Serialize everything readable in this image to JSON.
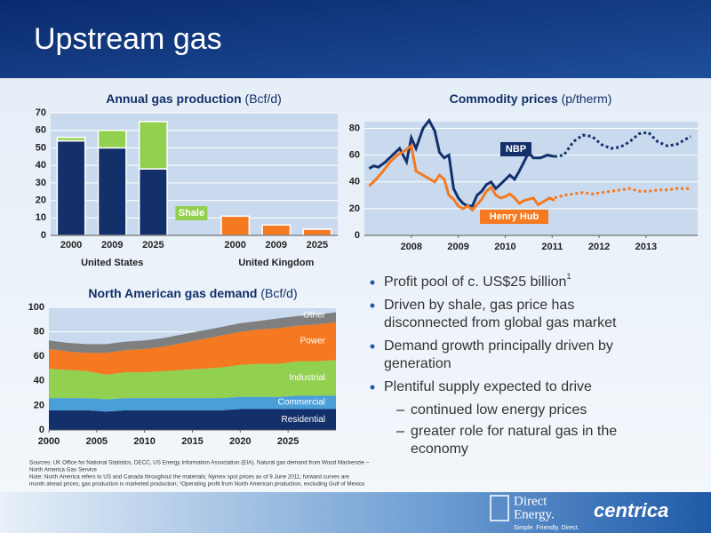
{
  "header": {
    "title": "Upstream gas"
  },
  "chart_data": [
    {
      "type": "bar",
      "title": "Annual gas production",
      "unit": "(Bcf/d)",
      "categories": [
        "2000",
        "2009",
        "2025",
        null,
        "2000",
        "2009",
        "2025"
      ],
      "group_labels": [
        "United States",
        "United Kingdom"
      ],
      "series": [
        {
          "color": "#13306b",
          "values": [
            54,
            50,
            38,
            null,
            null,
            null,
            null
          ]
        },
        {
          "name": "Shale",
          "color": "#92d050",
          "values": [
            2,
            10,
            27,
            null,
            null,
            null,
            null
          ]
        },
        {
          "color": "#f47920",
          "values": [
            null,
            null,
            null,
            null,
            11,
            6,
            3.5
          ]
        }
      ],
      "ylim": [
        0,
        70
      ],
      "yticks": [
        0,
        10,
        20,
        30,
        40,
        50,
        60,
        70
      ],
      "grid": true
    },
    {
      "type": "line",
      "title": "Commodity prices",
      "unit": "(p/therm)",
      "xlim": [
        2007.5,
        2014.6
      ],
      "xticks": [
        {
          "value": 2008.5,
          "label": "2008"
        },
        {
          "value": 2009.5,
          "label": "2009"
        },
        {
          "value": 2010.5,
          "label": "2010"
        },
        {
          "value": 2011.5,
          "label": "2011"
        },
        {
          "value": 2012.5,
          "label": "2012"
        },
        {
          "value": 2013.5,
          "label": "2013"
        }
      ],
      "ylim": [
        0,
        85
      ],
      "yticks": [
        0,
        20,
        40,
        60,
        80
      ],
      "grid": true,
      "series": [
        {
          "name": "NBP",
          "color": "#13306b",
          "dash": false,
          "x": [
            2007.6,
            2007.7,
            2007.8,
            2007.95,
            2008.1,
            2008.25,
            2008.4,
            2008.5,
            2008.6,
            2008.75,
            2008.88,
            2009.0,
            2009.1,
            2009.2,
            2009.3,
            2009.4,
            2009.5,
            2009.6,
            2009.7,
            2009.8,
            2009.9,
            2010.0,
            2010.1,
            2010.2,
            2010.3,
            2010.45,
            2010.6,
            2010.7,
            2010.8,
            2010.9,
            2011.0,
            2011.1,
            2011.25,
            2011.4,
            2011.55
          ],
          "values": [
            50,
            52,
            51,
            55,
            60,
            65,
            55,
            73,
            65,
            80,
            86,
            78,
            62,
            58,
            60,
            35,
            28,
            24,
            22,
            22,
            30,
            33,
            38,
            40,
            35,
            40,
            45,
            42,
            48,
            55,
            62,
            58,
            58,
            60,
            59
          ]
        },
        {
          "color": "#13306b",
          "dash": true,
          "x": [
            2011.55,
            2011.75,
            2011.95,
            2012.15,
            2012.35,
            2012.55,
            2012.75,
            2012.95,
            2013.15,
            2013.35,
            2013.55,
            2013.75,
            2013.95,
            2014.15,
            2014.45
          ],
          "values": [
            59,
            60,
            70,
            75,
            74,
            68,
            65,
            66,
            70,
            76,
            77,
            70,
            67,
            68,
            74
          ]
        },
        {
          "name": "Henry Hub",
          "color": "#f47920",
          "dash": false,
          "x": [
            2007.6,
            2007.75,
            2007.9,
            2008.05,
            2008.2,
            2008.35,
            2008.5,
            2008.6,
            2008.75,
            2008.9,
            2009.0,
            2009.1,
            2009.2,
            2009.3,
            2009.4,
            2009.5,
            2009.6,
            2009.7,
            2009.8,
            2009.9,
            2010.0,
            2010.1,
            2010.2,
            2010.3,
            2010.4,
            2010.5,
            2010.6,
            2010.7,
            2010.8,
            2010.9,
            2011.0,
            2011.1,
            2011.2,
            2011.3,
            2011.45,
            2011.55
          ],
          "values": [
            37,
            42,
            48,
            55,
            60,
            63,
            67,
            48,
            45,
            42,
            40,
            45,
            42,
            30,
            27,
            22,
            20,
            22,
            19,
            23,
            27,
            33,
            36,
            30,
            28,
            29,
            31,
            28,
            24,
            26,
            27,
            28,
            23,
            25,
            28,
            26
          ]
        },
        {
          "color": "#f47920",
          "dash": true,
          "x": [
            2011.55,
            2011.75,
            2011.95,
            2012.15,
            2012.35,
            2012.55,
            2012.75,
            2012.95,
            2013.15,
            2013.35,
            2013.55,
            2013.75,
            2013.95,
            2014.15,
            2014.45
          ],
          "values": [
            28,
            30,
            31,
            32,
            31,
            32,
            33,
            34,
            35,
            33,
            33,
            34,
            34,
            35,
            35
          ]
        }
      ]
    },
    {
      "type": "area",
      "title": "North American gas demand",
      "unit": "(Bcf/d)",
      "x": [
        2000,
        2002,
        2004,
        2006,
        2008,
        2010,
        2012,
        2014,
        2016,
        2018,
        2020,
        2022,
        2024,
        2026,
        2028,
        2030
      ],
      "xlim": [
        2000,
        2030
      ],
      "xticks": [
        2000,
        2005,
        2010,
        2015,
        2020,
        2025
      ],
      "ylim": [
        0,
        100
      ],
      "yticks": [
        0,
        20,
        40,
        60,
        80,
        100
      ],
      "grid": true,
      "series": [
        {
          "name": "Residential",
          "color": "#13306b",
          "values": [
            16,
            16,
            16,
            15,
            16,
            16,
            16,
            16,
            16,
            16,
            17,
            17,
            17,
            17,
            17,
            17
          ]
        },
        {
          "name": "Commercial",
          "color": "#4a9fd8",
          "values": [
            10,
            10,
            10,
            10,
            10,
            10,
            10,
            10,
            10,
            10,
            10,
            10,
            10,
            11,
            11,
            11
          ]
        },
        {
          "name": "Industrial",
          "color": "#92d050",
          "values": [
            24,
            23,
            22,
            20,
            21,
            21,
            22,
            23,
            24,
            25,
            26,
            27,
            27,
            28,
            28,
            29
          ]
        },
        {
          "name": "Power",
          "color": "#f47920",
          "values": [
            16,
            15,
            15,
            18,
            18,
            19,
            20,
            22,
            24,
            26,
            27,
            28,
            29,
            29,
            30,
            31
          ]
        },
        {
          "name": "Other",
          "color": "#7f7f7f",
          "values": [
            7,
            7,
            7,
            7,
            7,
            7,
            7,
            7,
            7,
            7,
            7,
            7,
            8,
            8,
            8,
            8
          ]
        }
      ]
    }
  ],
  "bullets": [
    {
      "lines": [
        "Profit pool of c. US$25 billion"
      ],
      "sup": "1"
    },
    {
      "lines": [
        "Driven by shale, gas price has",
        "disconnected from global gas market"
      ]
    },
    {
      "lines": [
        "Demand growth principally driven by",
        "generation"
      ]
    },
    {
      "lines": [
        "Plentiful supply expected to drive"
      ],
      "sub": [
        {
          "lines": [
            "continued low energy prices"
          ]
        },
        {
          "lines": [
            "greater role for natural gas in the",
            "economy"
          ]
        }
      ]
    }
  ],
  "sources": [
    "Sources: UK Office for National Statistics, DECC, US Energy Information Association (EIA). Natural gas demand from Wood Mackenzie –",
    "North America Gas Service",
    "Note:       North America refers to US and Canada throughout the materials; Nymex spot prices as of 9 June 2011; forward curves are",
    "month ahead prices; gas production is marketed production; ¹Operating profit from North American production, excluding Gulf of Mexico"
  ],
  "footer": {
    "brand1": [
      "Direct",
      "Energy."
    ],
    "tagline": "Simple. Friendly. Direct.",
    "brand2": "centrica"
  }
}
